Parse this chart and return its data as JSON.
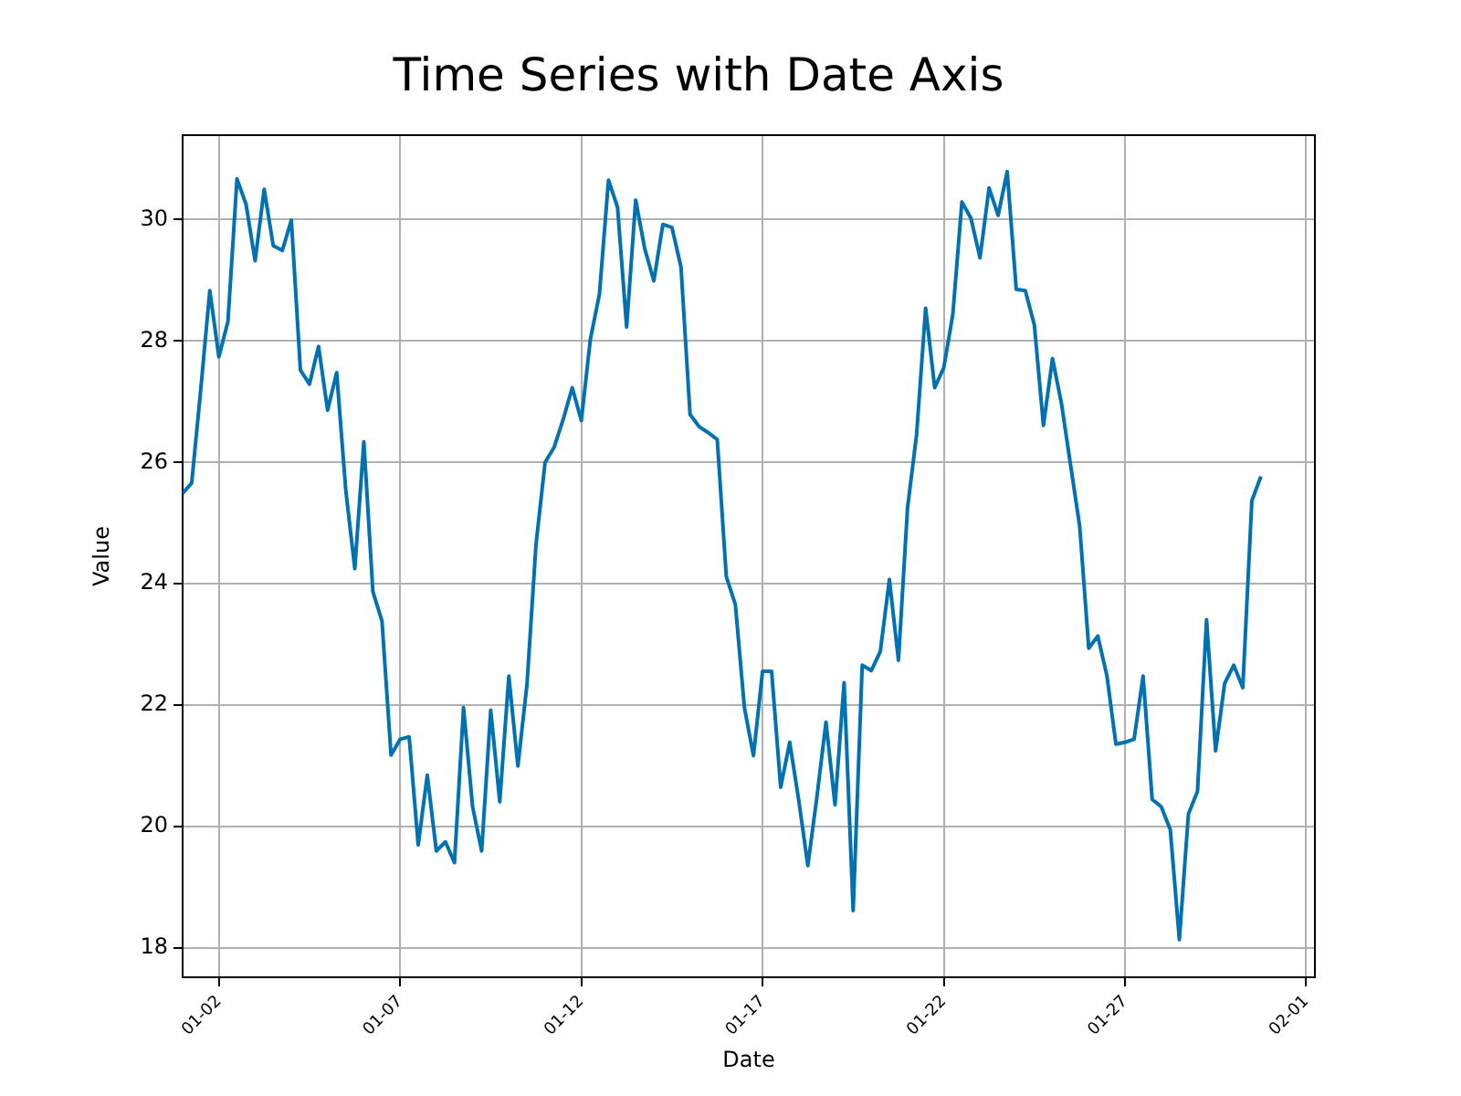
{
  "chart_data": {
    "type": "line",
    "title": "Time Series with Date Axis",
    "xlabel": "Date",
    "ylabel": "Value",
    "x": [
      "--01-01T00:00",
      "--01-01T06:00",
      "--01-01T12:00",
      "--01-01T18:00",
      "--01-02T00:00",
      "--01-02T06:00",
      "--01-02T12:00",
      "--01-02T18:00",
      "--01-03T00:00",
      "--01-03T06:00",
      "--01-03T12:00",
      "--01-03T18:00",
      "--01-04T00:00",
      "--01-04T06:00",
      "--01-04T12:00",
      "--01-04T18:00",
      "--01-05T00:00",
      "--01-05T06:00",
      "--01-05T12:00",
      "--01-05T18:00",
      "--01-06T00:00",
      "--01-06T06:00",
      "--01-06T12:00",
      "--01-06T18:00",
      "--01-07T00:00",
      "--01-07T06:00",
      "--01-07T12:00",
      "--01-07T18:00",
      "--01-08T00:00",
      "--01-08T06:00",
      "--01-08T12:00",
      "--01-08T18:00",
      "--01-09T00:00",
      "--01-09T06:00",
      "--01-09T12:00",
      "--01-09T18:00",
      "--01-10T00:00",
      "--01-10T06:00",
      "--01-10T12:00",
      "--01-10T18:00",
      "--01-11T00:00",
      "--01-11T06:00",
      "--01-11T12:00",
      "--01-11T18:00",
      "--01-12T00:00",
      "--01-12T06:00",
      "--01-12T12:00",
      "--01-12T18:00",
      "--01-13T00:00",
      "--01-13T06:00",
      "--01-13T12:00",
      "--01-13T18:00",
      "--01-14T00:00",
      "--01-14T06:00",
      "--01-14T12:00",
      "--01-14T18:00",
      "--01-15T00:00",
      "--01-15T06:00",
      "--01-15T12:00",
      "--01-15T18:00",
      "--01-16T00:00",
      "--01-16T06:00",
      "--01-16T12:00",
      "--01-16T18:00",
      "--01-17T00:00",
      "--01-17T06:00",
      "--01-17T12:00",
      "--01-17T18:00",
      "--01-18T00:00",
      "--01-18T06:00",
      "--01-18T12:00",
      "--01-18T18:00",
      "--01-19T00:00",
      "--01-19T06:00",
      "--01-19T12:00",
      "--01-19T18:00",
      "--01-20T00:00",
      "--01-20T06:00",
      "--01-20T12:00",
      "--01-20T18:00",
      "--01-21T00:00",
      "--01-21T06:00",
      "--01-21T12:00",
      "--01-21T18:00",
      "--01-22T00:00",
      "--01-22T06:00",
      "--01-22T12:00",
      "--01-22T18:00",
      "--01-23T00:00",
      "--01-23T06:00",
      "--01-23T12:00",
      "--01-23T18:00",
      "--01-24T00:00",
      "--01-24T06:00",
      "--01-24T12:00",
      "--01-24T18:00",
      "--01-25T00:00",
      "--01-25T06:00",
      "--01-25T12:00",
      "--01-25T18:00",
      "--01-26T00:00",
      "--01-26T06:00",
      "--01-26T12:00",
      "--01-26T18:00",
      "--01-27T00:00",
      "--01-27T06:00",
      "--01-27T12:00",
      "--01-27T18:00",
      "--01-28T00:00",
      "--01-28T06:00",
      "--01-28T12:00",
      "--01-28T18:00",
      "--01-29T00:00",
      "--01-29T06:00",
      "--01-29T12:00",
      "--01-29T18:00",
      "--01-30T00:00",
      "--01-30T06:00",
      "--01-30T12:00",
      "--01-30T18:00"
    ],
    "series": [
      {
        "color": "#0072b2",
        "values": [
          25.49,
          25.66,
          27.2,
          28.83,
          27.74,
          28.32,
          30.67,
          30.25,
          29.32,
          30.5,
          29.57,
          29.49,
          29.99,
          27.52,
          27.29,
          27.91,
          26.86,
          27.48,
          25.55,
          24.25,
          26.34,
          23.87,
          23.39,
          21.18,
          21.44,
          21.48,
          19.7,
          20.85,
          19.6,
          19.75,
          19.41,
          21.96,
          20.33,
          19.6,
          21.92,
          20.41,
          22.48,
          21.0,
          22.34,
          24.65,
          26.0,
          26.25,
          26.71,
          27.23,
          26.69,
          28.03,
          28.77,
          30.65,
          30.2,
          28.23,
          30.32,
          29.52,
          28.99,
          29.92,
          29.87,
          29.22,
          26.79,
          26.59,
          26.49,
          26.38,
          24.12,
          23.66,
          21.96,
          21.17,
          22.56,
          22.56,
          20.65,
          21.39,
          20.43,
          19.36,
          20.49,
          21.72,
          20.36,
          22.37,
          18.62,
          22.66,
          22.57,
          22.89,
          24.07,
          22.74,
          25.25,
          26.46,
          28.54,
          27.23,
          27.56,
          28.44,
          30.29,
          30.02,
          29.37,
          30.52,
          30.07,
          30.79,
          28.85,
          28.83,
          28.26,
          26.61,
          27.71,
          26.96,
          25.95,
          24.95,
          22.94,
          23.14,
          22.49,
          21.36,
          21.39,
          21.44,
          22.48,
          20.45,
          20.33,
          19.95,
          18.14,
          20.21,
          20.58,
          23.41,
          21.25,
          22.36,
          22.66,
          22.29,
          25.37,
          25.77
        ]
      }
    ],
    "xlim": [
      "--01-01T00:00",
      "--02-01T05:45"
    ],
    "xticks": [
      {
        "value": "--01-02",
        "label": "01-02"
      },
      {
        "value": "--01-07",
        "label": "01-07"
      },
      {
        "value": "--01-12",
        "label": "01-12"
      },
      {
        "value": "--01-17",
        "label": "01-17"
      },
      {
        "value": "--01-22",
        "label": "01-22"
      },
      {
        "value": "--01-27",
        "label": "01-27"
      },
      {
        "value": "--02-01",
        "label": "02-01"
      }
    ],
    "ylim": [
      17.52,
      31.39
    ],
    "yticks": [
      18,
      20,
      22,
      24,
      26,
      28,
      30
    ],
    "grid": true,
    "legend": false,
    "marker": "none",
    "line_style": "solid"
  }
}
